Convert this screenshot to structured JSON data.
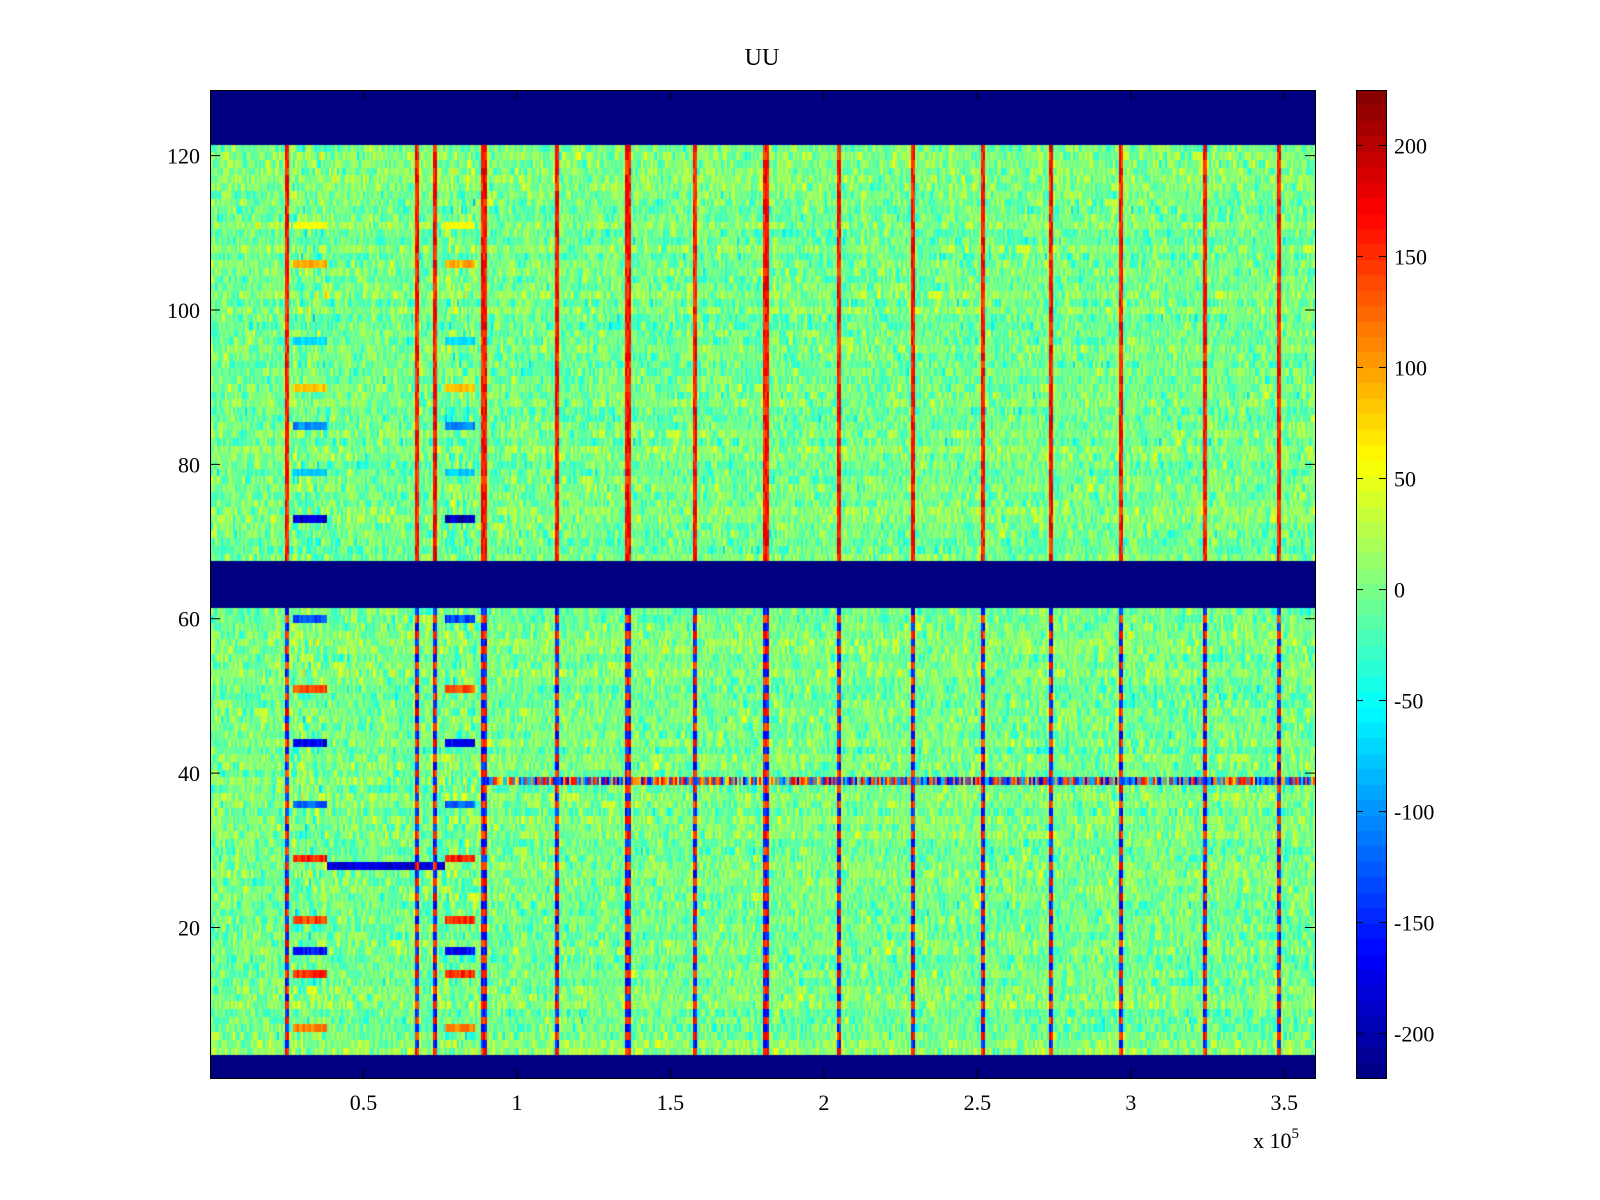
{
  "chart_data": {
    "type": "heatmap",
    "title": "UU",
    "xlabel": "",
    "ylabel": "",
    "x_multiplier_label": "x 10",
    "x_multiplier_exponent": "5",
    "xlim": [
      0,
      360000
    ],
    "ylim": [
      0.5,
      128.5
    ],
    "x_ticks": [
      {
        "value": 50000,
        "label": "0.5"
      },
      {
        "value": 100000,
        "label": "1"
      },
      {
        "value": 150000,
        "label": "1.5"
      },
      {
        "value": 200000,
        "label": "2"
      },
      {
        "value": 250000,
        "label": "2.5"
      },
      {
        "value": 300000,
        "label": "3"
      },
      {
        "value": 350000,
        "label": "3.5"
      }
    ],
    "y_ticks": [
      {
        "value": 20,
        "label": "20"
      },
      {
        "value": 40,
        "label": "40"
      },
      {
        "value": 60,
        "label": "60"
      },
      {
        "value": 80,
        "label": "80"
      },
      {
        "value": 100,
        "label": "100"
      },
      {
        "value": 120,
        "label": "120"
      }
    ],
    "colormap": "jet",
    "clim": [
      -220,
      225
    ],
    "colorbar_ticks": [
      {
        "value": 200,
        "label": "200"
      },
      {
        "value": 150,
        "label": "150"
      },
      {
        "value": 100,
        "label": "100"
      },
      {
        "value": 50,
        "label": "50"
      },
      {
        "value": 0,
        "label": "0"
      },
      {
        "value": -50,
        "label": "-50"
      },
      {
        "value": -100,
        "label": "-100"
      },
      {
        "value": -150,
        "label": "-150"
      },
      {
        "value": -200,
        "label": "-200"
      }
    ],
    "masked_row_bands": [
      {
        "rows": [
          1,
          3
        ],
        "value": -220
      },
      {
        "rows": [
          62,
          67
        ],
        "value": -220
      },
      {
        "rows": [
          122,
          128
        ],
        "value": -220
      }
    ],
    "background_value": 0,
    "noise_amplitude": 45,
    "vertical_stripe_x": [
      25000,
      67000,
      73000,
      89000,
      113000,
      136000,
      158000,
      181000,
      205000,
      229000,
      252000,
      274000,
      297000,
      324000,
      348000
    ],
    "active_block_x_ranges": [
      [
        27000,
        38000
      ],
      [
        76000,
        86000
      ]
    ],
    "active_block_row_values": [
      {
        "row": 73,
        "value": -200
      },
      {
        "row": 79,
        "value": -80
      },
      {
        "row": 85,
        "value": -110
      },
      {
        "row": 90,
        "value": 90
      },
      {
        "row": 96,
        "value": -70
      },
      {
        "row": 106,
        "value": 100
      },
      {
        "row": 111,
        "value": 60
      },
      {
        "row": 60,
        "value": -140
      },
      {
        "row": 51,
        "value": 140
      },
      {
        "row": 44,
        "value": -180
      },
      {
        "row": 36,
        "value": -130
      },
      {
        "row": 29,
        "value": 170
      },
      {
        "row": 21,
        "value": 150
      },
      {
        "row": 17,
        "value": -170
      },
      {
        "row": 14,
        "value": 160
      },
      {
        "row": 7,
        "value": 120
      }
    ],
    "horizontal_line_features": [
      {
        "row": 39,
        "x_range": [
          89000,
          360000
        ],
        "amplitude": 180
      },
      {
        "row": 28,
        "x_range": [
          38000,
          76000
        ],
        "value": -190
      }
    ]
  }
}
